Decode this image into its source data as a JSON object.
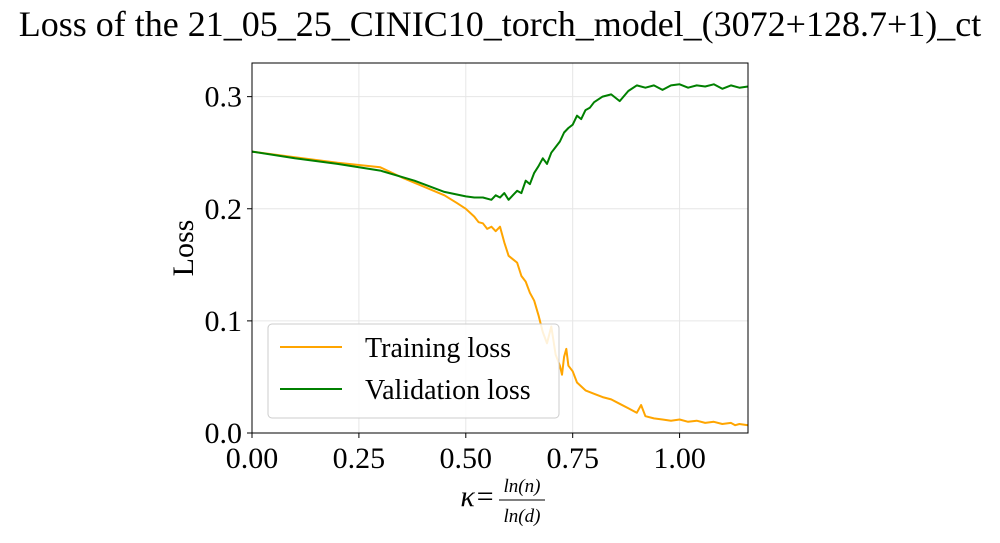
{
  "chart_data": {
    "type": "line",
    "title": "Loss of the 21_05_25_CINIC10_torch_model_(3072+128.7+1)_ct",
    "ylabel": "Loss",
    "xlabel": {
      "prefix": "κ=",
      "numerator": "ln(n)",
      "denominator": "ln(d)"
    },
    "xlim": [
      0,
      1.16
    ],
    "ylim": [
      0,
      0.33
    ],
    "xticks": [
      0,
      0.25,
      0.5,
      0.75,
      1.0
    ],
    "xtick_labels": [
      "0.00",
      "0.25",
      "0.50",
      "0.75",
      "1.00"
    ],
    "yticks": [
      0,
      0.1,
      0.2,
      0.3
    ],
    "ytick_labels": [
      "0.0",
      "0.1",
      "0.2",
      "0.3"
    ],
    "grid": true,
    "legend_position": "lower-left",
    "series": [
      {
        "name": "Training loss",
        "color": "#FFA500",
        "x": [
          0.0,
          0.1,
          0.2,
          0.3,
          0.35,
          0.4,
          0.45,
          0.48,
          0.5,
          0.52,
          0.53,
          0.54,
          0.55,
          0.56,
          0.57,
          0.58,
          0.59,
          0.6,
          0.61,
          0.62,
          0.63,
          0.64,
          0.65,
          0.66,
          0.67,
          0.68,
          0.69,
          0.7,
          0.71,
          0.72,
          0.725,
          0.73,
          0.735,
          0.74,
          0.75,
          0.76,
          0.78,
          0.8,
          0.82,
          0.84,
          0.86,
          0.88,
          0.9,
          0.91,
          0.92,
          0.94,
          0.96,
          0.98,
          1.0,
          1.02,
          1.04,
          1.06,
          1.08,
          1.1,
          1.12,
          1.13,
          1.14,
          1.16
        ],
        "y": [
          0.251,
          0.246,
          0.241,
          0.237,
          0.228,
          0.22,
          0.212,
          0.205,
          0.2,
          0.193,
          0.188,
          0.187,
          0.182,
          0.184,
          0.18,
          0.184,
          0.17,
          0.158,
          0.155,
          0.152,
          0.14,
          0.135,
          0.125,
          0.118,
          0.105,
          0.09,
          0.08,
          0.095,
          0.07,
          0.06,
          0.052,
          0.068,
          0.075,
          0.06,
          0.055,
          0.045,
          0.038,
          0.035,
          0.032,
          0.03,
          0.026,
          0.022,
          0.018,
          0.025,
          0.015,
          0.013,
          0.012,
          0.011,
          0.012,
          0.01,
          0.011,
          0.009,
          0.01,
          0.008,
          0.009,
          0.007,
          0.008,
          0.007
        ]
      },
      {
        "name": "Validation loss",
        "color": "#008000",
        "x": [
          0.0,
          0.1,
          0.2,
          0.3,
          0.38,
          0.45,
          0.5,
          0.52,
          0.54,
          0.56,
          0.57,
          0.58,
          0.59,
          0.6,
          0.61,
          0.62,
          0.63,
          0.64,
          0.65,
          0.66,
          0.67,
          0.68,
          0.69,
          0.7,
          0.71,
          0.72,
          0.73,
          0.74,
          0.75,
          0.76,
          0.77,
          0.78,
          0.79,
          0.8,
          0.82,
          0.84,
          0.86,
          0.88,
          0.9,
          0.92,
          0.94,
          0.96,
          0.98,
          1.0,
          1.02,
          1.04,
          1.06,
          1.08,
          1.1,
          1.12,
          1.14,
          1.16
        ],
        "y": [
          0.251,
          0.245,
          0.24,
          0.234,
          0.225,
          0.215,
          0.211,
          0.21,
          0.21,
          0.208,
          0.212,
          0.21,
          0.214,
          0.208,
          0.212,
          0.216,
          0.214,
          0.225,
          0.222,
          0.232,
          0.238,
          0.245,
          0.24,
          0.25,
          0.255,
          0.26,
          0.268,
          0.272,
          0.275,
          0.283,
          0.28,
          0.288,
          0.29,
          0.295,
          0.3,
          0.302,
          0.296,
          0.305,
          0.31,
          0.308,
          0.31,
          0.306,
          0.31,
          0.311,
          0.308,
          0.31,
          0.309,
          0.311,
          0.307,
          0.31,
          0.308,
          0.309
        ]
      }
    ]
  }
}
